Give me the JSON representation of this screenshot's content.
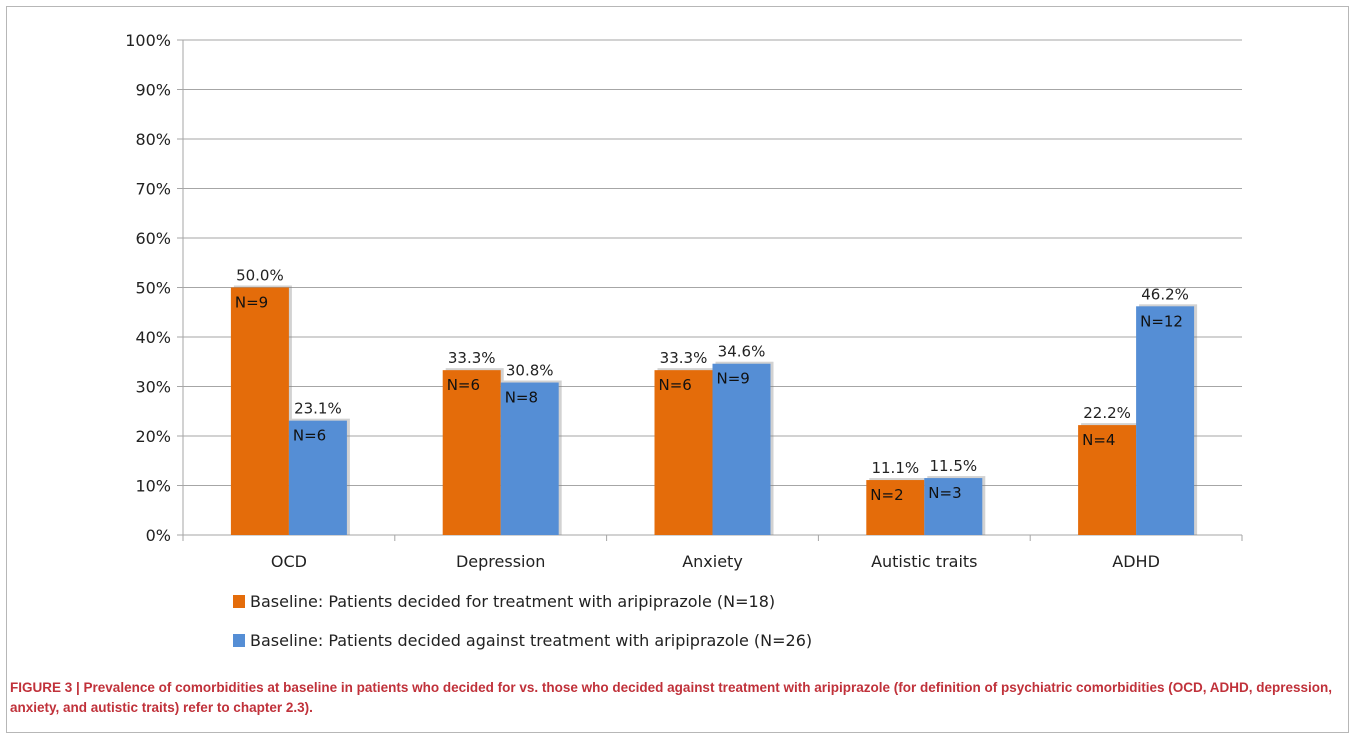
{
  "colors": {
    "for": "#e46c0a",
    "against": "#558ed5",
    "grid": "#a6a6a6"
  },
  "caption": "FIGURE 3 | Prevalence of comorbidities at baseline in patients who decided for vs. those who decided against treatment with aripiprazole (for definition of psychiatric comorbidities (OCD, ADHD, depression, anxiety, and autistic traits) refer to chapter 2.3).",
  "chart_data": {
    "type": "bar",
    "title": "",
    "xlabel": "",
    "ylabel": "",
    "ylim": [
      0,
      100
    ],
    "yticks": [
      "0%",
      "10%",
      "20%",
      "30%",
      "40%",
      "50%",
      "60%",
      "70%",
      "80%",
      "90%",
      "100%"
    ],
    "grid": true,
    "legend_position": "bottom",
    "categories": [
      "OCD",
      "Depression",
      "Anxiety",
      "Autistic traits",
      "ADHD"
    ],
    "series": [
      {
        "name": "Baseline: Patients decided for treatment with aripiprazole (N=18)",
        "values": [
          50.0,
          33.3,
          33.3,
          11.1,
          22.2
        ],
        "value_labels": [
          "50.0%",
          "33.3%",
          "33.3%",
          "11.1%",
          "22.2%"
        ],
        "n_labels": [
          "N=9",
          "N=6",
          "N=6",
          "N=2",
          "N=4"
        ]
      },
      {
        "name": "Baseline: Patients decided against treatment with aripiprazole (N=26)",
        "values": [
          23.1,
          30.8,
          34.6,
          11.5,
          46.2
        ],
        "value_labels": [
          "23.1%",
          "30.8%",
          "34.6%",
          "11.5%",
          "46.2%"
        ],
        "n_labels": [
          "N=6",
          "N=8",
          "N=9",
          "N=3",
          "N=12"
        ]
      }
    ]
  }
}
